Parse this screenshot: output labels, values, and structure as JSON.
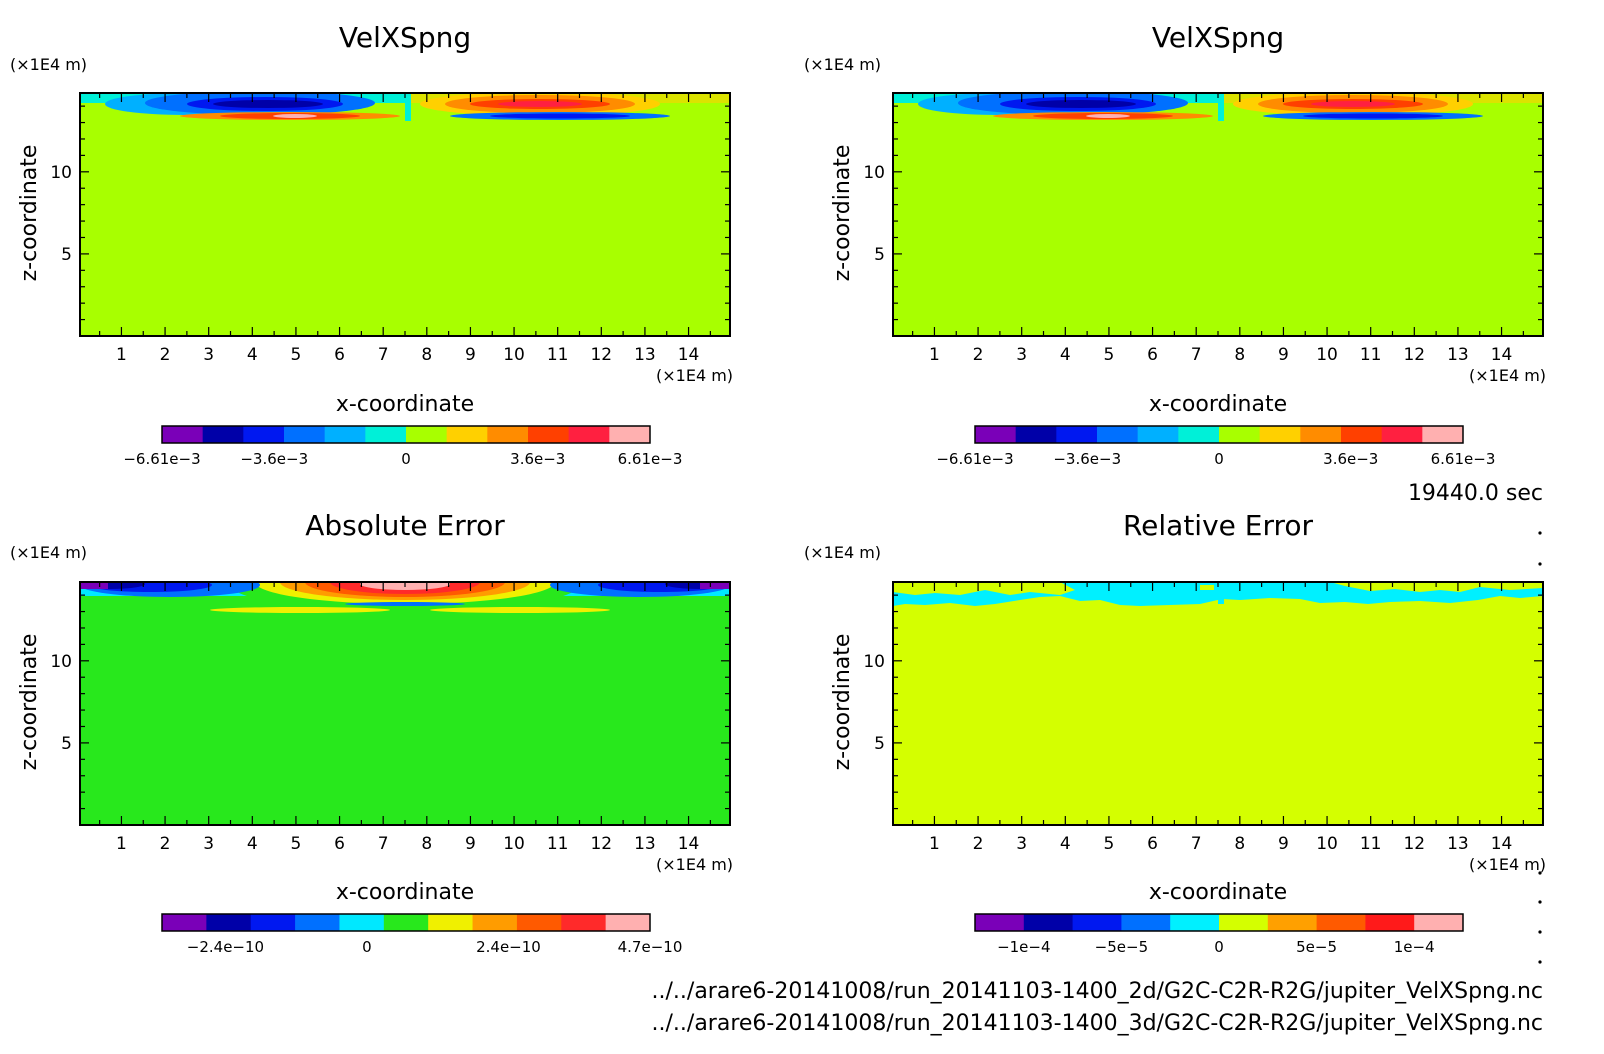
{
  "chart_data": [
    {
      "type": "heatmap",
      "title": "VelXSpng",
      "xlabel": "x-coordinate",
      "ylabel": "z-coordinate",
      "x_unit": "(×1E4 m)",
      "y_unit": "(×1E4 m)",
      "x_ticks": [
        1,
        2,
        3,
        4,
        5,
        6,
        7,
        8,
        9,
        10,
        11,
        12,
        13,
        14
      ],
      "y_ticks": [
        5,
        10
      ],
      "xlim": [
        0.05,
        14.95
      ],
      "ylim": [
        0,
        14.8
      ],
      "grid": false,
      "colorbar": {
        "range": [
          -0.00661,
          0.00661
        ],
        "tick_labels": [
          "−6.61e−3",
          "−3.6e−3",
          "0",
          "3.6e−3",
          "6.61e−3"
        ],
        "colors": [
          "#7a00b8",
          "#0000a8",
          "#0018f0",
          "#0070ff",
          "#00b0ff",
          "#00f0d8",
          "#a8ff00",
          "#ffd000",
          "#ff8c00",
          "#ff4000",
          "#ff2040",
          "#ffb0b0"
        ]
      }
    },
    {
      "type": "heatmap",
      "title": "VelXSpng",
      "xlabel": "x-coordinate",
      "ylabel": "z-coordinate",
      "x_unit": "(×1E4 m)",
      "y_unit": "(×1E4 m)",
      "x_ticks": [
        1,
        2,
        3,
        4,
        5,
        6,
        7,
        8,
        9,
        10,
        11,
        12,
        13,
        14
      ],
      "y_ticks": [
        5,
        10
      ],
      "xlim": [
        0.05,
        14.95
      ],
      "ylim": [
        0,
        14.8
      ],
      "grid": false,
      "colorbar": {
        "range": [
          -0.00661,
          0.00661
        ],
        "tick_labels": [
          "−6.61e−3",
          "−3.6e−3",
          "0",
          "3.6e−3",
          "6.61e−3"
        ],
        "colors": [
          "#7a00b8",
          "#0000a8",
          "#0018f0",
          "#0070ff",
          "#00b0ff",
          "#00f0d8",
          "#a8ff00",
          "#ffd000",
          "#ff8c00",
          "#ff4000",
          "#ff2040",
          "#ffb0b0"
        ]
      }
    },
    {
      "type": "heatmap",
      "title": "Absolute Error",
      "xlabel": "x-coordinate",
      "ylabel": "z-coordinate",
      "x_unit": "(×1E4 m)",
      "y_unit": "(×1E4 m)",
      "x_ticks": [
        1,
        2,
        3,
        4,
        5,
        6,
        7,
        8,
        9,
        10,
        11,
        12,
        13,
        14
      ],
      "y_ticks": [
        5,
        10
      ],
      "xlim": [
        0.05,
        14.95
      ],
      "ylim": [
        0,
        14.8
      ],
      "grid": false,
      "colorbar": {
        "tick_labels": [
          "−2.4e−10",
          "0",
          "2.4e−10",
          "4.7e−10"
        ],
        "colors": [
          "#7a00b8",
          "#0000a8",
          "#0018f0",
          "#0070ff",
          "#00e8ff",
          "#28e81c",
          "#f0f000",
          "#ff9c00",
          "#ff5a00",
          "#ff2a2a",
          "#ffb0b0"
        ]
      }
    },
    {
      "type": "heatmap",
      "title": "Relative Error",
      "xlabel": "x-coordinate",
      "ylabel": "z-coordinate",
      "x_unit": "(×1E4 m)",
      "y_unit": "(×1E4 m)",
      "x_ticks": [
        1,
        2,
        3,
        4,
        5,
        6,
        7,
        8,
        9,
        10,
        11,
        12,
        13,
        14
      ],
      "y_ticks": [
        5,
        10
      ],
      "xlim": [
        0.05,
        14.95
      ],
      "ylim": [
        0,
        14.8
      ],
      "grid": false,
      "colorbar": {
        "tick_labels": [
          "−1e−4",
          "−5e−5",
          "0",
          "5e−5",
          "1e−4"
        ],
        "colors": [
          "#7a00b8",
          "#0000a8",
          "#0018f0",
          "#0070ff",
          "#00f0ff",
          "#d4ff00",
          "#ffa000",
          "#ff5a00",
          "#ff1a1a",
          "#ffb0b0"
        ]
      }
    }
  ],
  "footer": {
    "time": "19440.0 sec",
    "path1": "../../arare6-20141008/run_20141103-1400_2d/G2C-C2R-R2G/jupiter_VelXSpng.nc",
    "path2": "../../arare6-20141008/run_20141103-1400_3d/G2C-C2R-R2G/jupiter_VelXSpng.nc"
  },
  "colors": {
    "field_vel": "#a8ff00",
    "field_abs": "#28e81c",
    "field_rel": "#d4ff00",
    "cyan": "#00f0ff"
  }
}
